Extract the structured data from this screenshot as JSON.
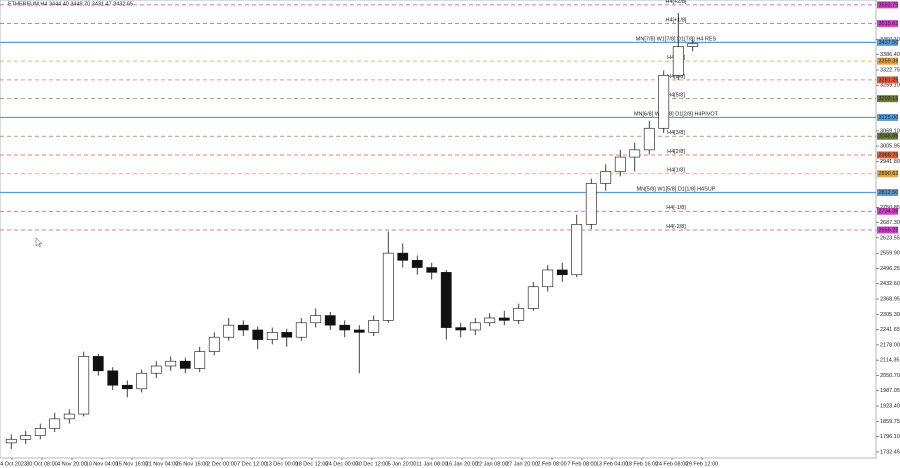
{
  "chart_data": {
    "type": "candlestick",
    "title": "ETHEREUM,H4  3444.40 3449.70 3431.47 3432.65",
    "categories": [
      "24 Oct 2023",
      "30 Oct 08:00",
      "4 Nov 20:00",
      "10 Nov 04:00",
      "15 Nov 16:00",
      "21 Nov 04:00",
      "26 Nov 16:00",
      "2 Dec 00:00",
      "7 Dec 12:00",
      "13 Dec 00:00",
      "18 Dec 12:00",
      "24 Dec 00:00",
      "30 Dec 12:00",
      "5 Jan 20:00",
      "11 Jan 08:00",
      "16 Jan 20:00",
      "22 Jan 08:00",
      "27 Jan 20:00",
      "2 Feb 08:00",
      "7 Feb 08:00",
      "13 Feb 04:00",
      "18 Feb 16:00",
      "24 Feb 08:00",
      "29 Feb 12:00"
    ],
    "open": [
      1770,
      1785,
      1800,
      1830,
      1870,
      1890,
      2130,
      2070,
      2010,
      1995,
      2060,
      2090,
      2110,
      2080,
      2150,
      2210,
      2260,
      2240,
      2200,
      2230,
      2210,
      2270,
      2300,
      2260,
      2240,
      2230,
      2280,
      2560,
      2530,
      2500,
      2480,
      2250,
      2240,
      2270,
      2290,
      2280,
      2330,
      2420,
      2490,
      2470,
      2680,
      2850,
      2900,
      2960,
      2990,
      3080,
      3300,
      3420
    ],
    "high": [
      1805,
      1820,
      1850,
      1895,
      1910,
      2150,
      2140,
      2085,
      2030,
      2075,
      2110,
      2130,
      2125,
      2170,
      2230,
      2290,
      2280,
      2255,
      2250,
      2245,
      2290,
      2330,
      2315,
      2280,
      2260,
      2300,
      2650,
      2600,
      2550,
      2520,
      2490,
      2270,
      2290,
      2310,
      2320,
      2350,
      2440,
      2510,
      2520,
      2720,
      2870,
      2930,
      2990,
      3020,
      3110,
      3320,
      3560,
      3449.7
    ],
    "low": [
      1745,
      1765,
      1785,
      1815,
      1850,
      1880,
      2050,
      1990,
      1960,
      1980,
      2040,
      2070,
      2060,
      2065,
      2135,
      2195,
      2215,
      2160,
      2180,
      2170,
      2195,
      2250,
      2240,
      2210,
      2060,
      2215,
      2270,
      2500,
      2470,
      2450,
      2200,
      2210,
      2220,
      2255,
      2260,
      2265,
      2320,
      2400,
      2440,
      2460,
      2660,
      2820,
      2880,
      2900,
      2970,
      3060,
      3280,
      3400
    ],
    "close": [
      1785,
      1800,
      1830,
      1870,
      1890,
      2130,
      2070,
      2010,
      1995,
      2060,
      2090,
      2110,
      2080,
      2150,
      2210,
      2260,
      2240,
      2200,
      2230,
      2210,
      2270,
      2300,
      2260,
      2240,
      2230,
      2280,
      2560,
      2530,
      2500,
      2480,
      2250,
      2240,
      2270,
      2290,
      2280,
      2330,
      2420,
      2490,
      2470,
      2680,
      2850,
      2900,
      2960,
      2990,
      3080,
      3300,
      3420,
      3432.65
    ],
    "ylim": [
      1707,
      3614
    ],
    "yticks": [
      {
        "value": 3450.1,
        "label": "3450.10"
      },
      {
        "value": 3386.4,
        "label": "3386.40"
      },
      {
        "value": 3322.75,
        "label": "3322.75"
      },
      {
        "value": 3259.1,
        "label": "3259.10"
      },
      {
        "value": 3069.1,
        "label": "3069.10"
      },
      {
        "value": 3005.95,
        "label": "3005.95"
      },
      {
        "value": 2941.8,
        "label": "2941.80"
      },
      {
        "value": 2750.85,
        "label": "2750.85"
      },
      {
        "value": 2687.3,
        "label": "2687.30"
      },
      {
        "value": 2623.55,
        "label": "2623.55"
      },
      {
        "value": 2559.9,
        "label": "2559.90"
      },
      {
        "value": 2496.25,
        "label": "2496.25"
      },
      {
        "value": 2432.6,
        "label": "2432.60"
      },
      {
        "value": 2368.95,
        "label": "2368.95"
      },
      {
        "value": 2305.3,
        "label": "2305.30"
      },
      {
        "value": 2241.65,
        "label": "2241.65"
      },
      {
        "value": 2178,
        "label": "2178.00"
      },
      {
        "value": 2114.35,
        "label": "2114.35"
      },
      {
        "value": 2050.7,
        "label": "2050.70"
      },
      {
        "value": 1987.05,
        "label": "1987.05"
      },
      {
        "value": 1923.4,
        "label": "1923.40"
      },
      {
        "value": 1859.75,
        "label": "1859.75"
      },
      {
        "value": 1796.1,
        "label": "1796.10"
      },
      {
        "value": 1732.45,
        "label": "1732.45"
      }
    ],
    "levels": [
      {
        "name": "H4[+2/8]",
        "value": 3593.75,
        "value_label": "3593.75",
        "color": "#d040c8",
        "dash": true
      },
      {
        "name": "H4[+1/8]",
        "value": 3515.62,
        "value_label": "3515.62",
        "color": "#d040c8",
        "dash": true
      },
      {
        "name": "MN[7/8] W1[7/8] D1[7/8] H4 RES",
        "value": 3437.5,
        "value_label": "3437.50",
        "color": "#5b9bd5",
        "dash": false
      },
      {
        "name": "H4[7/8]",
        "value": 3359.38,
        "value_label": "3359.38",
        "color": "#e8a040",
        "dash": true
      },
      {
        "name": "H4[6/8]",
        "value": 3281.25,
        "value_label": "3281.25",
        "color": "#e05a3a",
        "dash": true
      },
      {
        "name": "H4[5/8]",
        "value": 3203.12,
        "value_label": "3203.12",
        "color": "#6b7a3a",
        "dash": true
      },
      {
        "name": "MN[6/8] W1[6/8] D1[2/8] H4PIVOT",
        "value": 3125,
        "value_label": "3125.00",
        "color": "#5b9bd5",
        "dash": false
      },
      {
        "name": "H4[3/8]",
        "value": 3046.88,
        "value_label": "3046.88",
        "color": "#6b7a3a",
        "dash": true
      },
      {
        "name": "H4[2/8]",
        "value": 2968.75,
        "value_label": "2968.75",
        "color": "#e05a3a",
        "dash": true
      },
      {
        "name": "H4[1/8]",
        "value": 2890.62,
        "value_label": "2890.62",
        "color": "#e8a040",
        "dash": true
      },
      {
        "name": "MN[5/8] W1[5/8] D1[1/8] H4SUP",
        "value": 2812.5,
        "value_label": "2812.50",
        "color": "#5b9bd5",
        "dash": false
      },
      {
        "name": "H4[-1/8]",
        "value": 2734.38,
        "value_label": "2734.38",
        "color": "#d040c8",
        "dash": true
      },
      {
        "name": "H4[-2/8]",
        "value": 2656.25,
        "value_label": "2656.25",
        "color": "#d040c8",
        "dash": true
      }
    ]
  }
}
